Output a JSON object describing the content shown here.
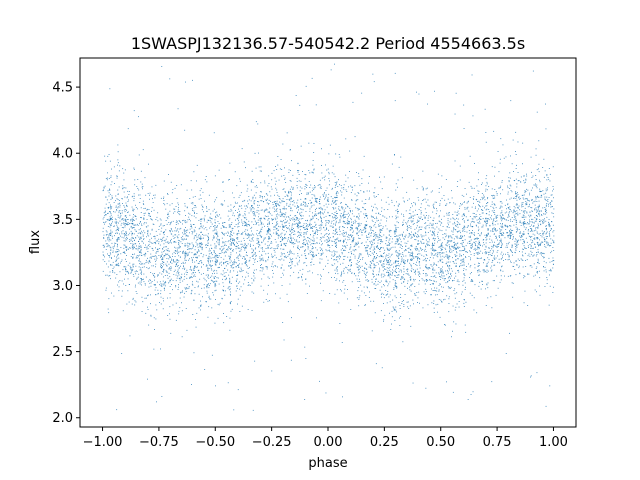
{
  "chart_data": {
    "type": "scatter",
    "title": "1SWASPJ132136.57-540542.2 Period 4554663.5s",
    "xlabel": "phase",
    "ylabel": "flux",
    "xlim": [
      -1.1,
      1.1
    ],
    "ylim": [
      1.93,
      4.72
    ],
    "xticks": [
      -1.0,
      -0.75,
      -0.5,
      -0.25,
      0.0,
      0.25,
      0.5,
      0.75,
      1.0
    ],
    "xtick_labels": [
      "−1.00",
      "−0.75",
      "−0.50",
      "−0.25",
      "0.00",
      "0.25",
      "0.50",
      "0.75",
      "1.00"
    ],
    "yticks": [
      2.0,
      2.5,
      3.0,
      3.5,
      4.0,
      4.5
    ],
    "ytick_labels": [
      "2.0",
      "2.5",
      "3.0",
      "3.5",
      "4.0",
      "4.5"
    ],
    "grid": false,
    "marker_color": "#1f77b4",
    "phase_range": [
      -1.0,
      1.0
    ],
    "flux_profile": {
      "phase": [
        0.0,
        0.1,
        0.2,
        0.25,
        0.3,
        0.4,
        0.5,
        0.6,
        0.7,
        0.75,
        0.8,
        0.9,
        1.0
      ],
      "median_flux": [
        3.45,
        3.4,
        3.3,
        3.22,
        3.25,
        3.28,
        3.25,
        3.3,
        3.42,
        3.45,
        3.47,
        3.46,
        3.45
      ]
    },
    "flux_spread_core": 0.22,
    "flux_outlier_range": [
      2.05,
      4.68
    ]
  }
}
